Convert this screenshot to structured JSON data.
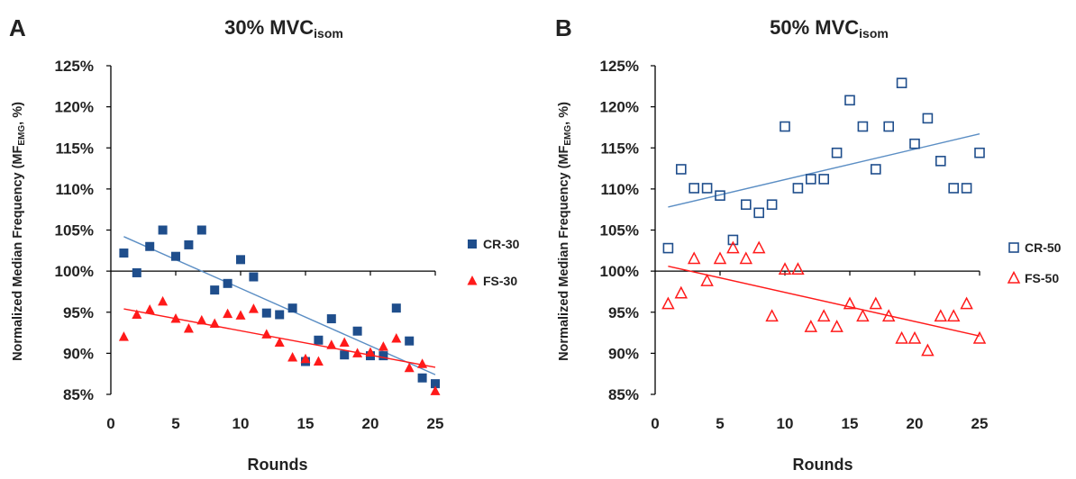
{
  "chart_data": [
    {
      "type": "scatter",
      "panel_letter": "A",
      "title": "30% MVC",
      "title_subscript": "isom",
      "xlabel": "Rounds",
      "ylabel": "Normalized Median Frequency (MF",
      "ylabel_subscript": "EMG",
      "ylabel_suffix": ", %)",
      "xlim": [
        0,
        25
      ],
      "ylim": [
        85,
        125
      ],
      "x_ticks": [
        "0",
        "5",
        "10",
        "15",
        "20",
        "25"
      ],
      "y_ticks": [
        "85%",
        "90%",
        "95%",
        "100%",
        "105%",
        "110%",
        "115%",
        "120%",
        "125%"
      ],
      "x_axis_crosses_y": 100,
      "grid": false,
      "legend_position": "right",
      "series": [
        {
          "name": "CR-30",
          "marker": "square-filled",
          "color": "#1f4e8c",
          "trendline_color": "#5b8ec4",
          "x": [
            1,
            2,
            3,
            4,
            5,
            6,
            7,
            8,
            9,
            10,
            11,
            12,
            13,
            14,
            15,
            16,
            17,
            18,
            19,
            20,
            21,
            22,
            23,
            24,
            25
          ],
          "y": [
            102.2,
            99.8,
            103.0,
            105.0,
            101.8,
            103.2,
            105.0,
            97.7,
            98.5,
            101.4,
            99.3,
            94.9,
            94.7,
            95.5,
            89.0,
            91.6,
            94.2,
            89.8,
            92.7,
            89.7,
            89.7,
            95.5,
            91.5,
            87.0,
            86.3
          ],
          "trendline": [
            [
              1,
              104.2
            ],
            [
              25,
              87.4
            ]
          ]
        },
        {
          "name": "FS-30",
          "marker": "triangle-filled",
          "color": "#ff1a1a",
          "trendline_color": "#ff1a1a",
          "x": [
            1,
            2,
            3,
            4,
            5,
            6,
            7,
            8,
            9,
            10,
            11,
            12,
            13,
            14,
            15,
            16,
            17,
            18,
            19,
            20,
            21,
            22,
            23,
            24,
            25
          ],
          "y": [
            92.0,
            94.7,
            95.3,
            96.3,
            94.2,
            93.0,
            94.0,
            93.6,
            94.8,
            94.6,
            95.4,
            92.3,
            91.3,
            89.5,
            89.3,
            89.0,
            91.0,
            91.3,
            90.0,
            90.1,
            90.8,
            91.8,
            88.2,
            88.7,
            85.4
          ],
          "trendline": [
            [
              1,
              95.4
            ],
            [
              25,
              88.3
            ]
          ]
        }
      ]
    },
    {
      "type": "scatter",
      "panel_letter": "B",
      "title": "50% MVC",
      "title_subscript": "isom",
      "xlabel": "Rounds",
      "ylabel": "Normalized Median Frequency (MF",
      "ylabel_subscript": "EMG",
      "ylabel_suffix": ", %)",
      "xlim": [
        0,
        25
      ],
      "ylim": [
        85,
        125
      ],
      "x_ticks": [
        "0",
        "5",
        "10",
        "15",
        "20",
        "25"
      ],
      "y_ticks": [
        "85%",
        "90%",
        "95%",
        "100%",
        "105%",
        "110%",
        "115%",
        "120%",
        "125%"
      ],
      "x_axis_crosses_y": 100,
      "grid": false,
      "legend_position": "right",
      "series": [
        {
          "name": "CR-50",
          "marker": "square-open",
          "color": "#1f4e8c",
          "trendline_color": "#5b8ec4",
          "x": [
            1,
            2,
            3,
            4,
            5,
            6,
            7,
            8,
            9,
            10,
            11,
            12,
            13,
            14,
            15,
            16,
            17,
            18,
            19,
            20,
            21,
            22,
            23,
            24,
            25
          ],
          "y": [
            102.8,
            112.4,
            110.1,
            110.1,
            109.2,
            103.8,
            108.1,
            107.1,
            108.1,
            117.6,
            110.1,
            111.2,
            111.2,
            114.4,
            120.8,
            117.6,
            112.4,
            117.6,
            122.9,
            115.5,
            118.6,
            113.4,
            110.1,
            110.1,
            114.4
          ],
          "trendline": [
            [
              1,
              107.8
            ],
            [
              25,
              116.7
            ]
          ]
        },
        {
          "name": "FS-50",
          "marker": "triangle-open",
          "color": "#ff1a1a",
          "trendline_color": "#ff1a1a",
          "x": [
            1,
            2,
            3,
            4,
            5,
            6,
            7,
            8,
            9,
            10,
            11,
            12,
            13,
            14,
            15,
            16,
            17,
            18,
            19,
            20,
            21,
            22,
            23,
            24,
            25
          ],
          "y": [
            96.0,
            97.3,
            101.5,
            98.8,
            101.5,
            102.8,
            101.5,
            102.8,
            94.5,
            100.2,
            100.2,
            93.2,
            94.5,
            93.2,
            96.0,
            94.5,
            96.0,
            94.5,
            91.8,
            91.8,
            90.3,
            94.5,
            94.5,
            96.0,
            91.8
          ],
          "trendline": [
            [
              1,
              100.6
            ],
            [
              25,
              92.1
            ]
          ]
        }
      ]
    }
  ]
}
